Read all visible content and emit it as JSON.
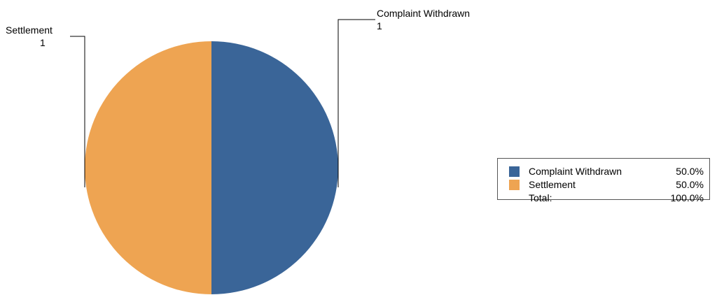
{
  "chart_data": {
    "type": "pie",
    "categories": [
      "Complaint Withdrawn",
      "Settlement"
    ],
    "values": [
      1,
      1
    ],
    "percent_labels": [
      "50.0%",
      "50.0%"
    ],
    "colors": [
      "#3A6598",
      "#EEA452"
    ],
    "start_angle_deg": 0,
    "direction": "clockwise"
  },
  "legend": {
    "items": [
      {
        "name": "Complaint Withdrawn",
        "percent": "50.0%"
      },
      {
        "name": "Settlement",
        "percent": "50.0%"
      }
    ],
    "total_label": "Total:",
    "total_percent": "100.0%",
    "placement": "right"
  }
}
